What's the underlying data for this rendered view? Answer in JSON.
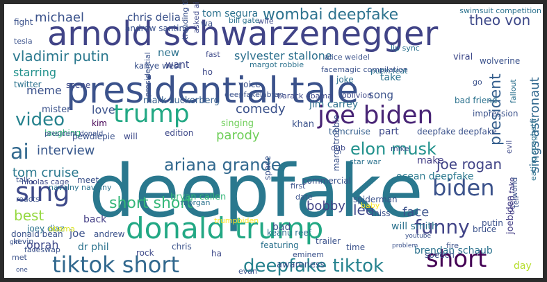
{
  "words": [
    {
      "text": "deepfake",
      "color": "#2a788e"
    },
    {
      "text": "presidential tale",
      "color": "#3b528b"
    },
    {
      "text": "arnold schwarzenegger",
      "color": "#414487"
    },
    {
      "text": "donald trump",
      "color": "#22a884"
    },
    {
      "text": "joe biden",
      "color": "#482475"
    },
    {
      "text": "trump",
      "color": "#22a884"
    },
    {
      "text": "tiktok short",
      "color": "#31688e"
    },
    {
      "text": "sing",
      "color": "#3e4989"
    },
    {
      "text": "short",
      "color": "#440154"
    },
    {
      "text": "biden",
      "color": "#3b528b"
    },
    {
      "text": "funny",
      "color": "#414487"
    },
    {
      "text": "deepfake tiktok",
      "color": "#26828e"
    },
    {
      "text": "video",
      "color": "#26828e"
    },
    {
      "text": "ai",
      "color": "#31688e"
    },
    {
      "text": "ariana grande",
      "color": "#31688e"
    },
    {
      "text": "elon musk",
      "color": "#21918c"
    },
    {
      "text": "wombai deepfake",
      "color": "#2c728e"
    },
    {
      "text": "short short",
      "color": "#35b779"
    },
    {
      "text": "vladimir putin",
      "color": "#2a788e"
    },
    {
      "text": "theo von",
      "color": "#3e4989"
    },
    {
      "text": "joe rogan",
      "color": "#414487"
    },
    {
      "text": "president",
      "color": "#355f8d"
    },
    {
      "text": "interview",
      "color": "#38588c"
    },
    {
      "text": "comedy",
      "color": "#3b528b"
    },
    {
      "text": "parody",
      "color": "#6ece58"
    },
    {
      "text": "sings astronaut",
      "color": "#31688e"
    },
    {
      "text": "tom cruise",
      "color": "#2a788e"
    },
    {
      "text": "sylvester stallone",
      "color": "#2d708e"
    },
    {
      "text": "michael",
      "color": "#3b528b"
    },
    {
      "text": "bobby",
      "color": "#414487"
    },
    {
      "text": "lee",
      "color": "#3e4989"
    },
    {
      "text": "face",
      "color": "#3b528b"
    },
    {
      "text": "oprah",
      "color": "#3e4989"
    },
    {
      "text": "best",
      "color": "#95d840"
    },
    {
      "text": "meme",
      "color": "#3b528b"
    },
    {
      "text": "love",
      "color": "#3b528b"
    },
    {
      "text": "starring",
      "color": "#21918c"
    },
    {
      "text": "laughing",
      "color": "#35b779"
    },
    {
      "text": "bryan callen",
      "color": "#35b779"
    },
    {
      "text": "dr phil",
      "color": "#2c728e"
    },
    {
      "text": "joe",
      "color": "#3b528b"
    },
    {
      "text": "back",
      "color": "#433e85"
    },
    {
      "text": "jim carrey",
      "color": "#2d708e"
    },
    {
      "text": "song",
      "color": "#3b528b"
    },
    {
      "text": "take",
      "color": "#2c728e"
    },
    {
      "text": "make",
      "color": "#433e85"
    },
    {
      "text": "day",
      "color": "#b5de2b"
    },
    {
      "text": "brendan schaub",
      "color": "#2c728e"
    },
    {
      "text": "will smith",
      "color": "#2c728e"
    },
    {
      "text": "new",
      "color": "#2c728e"
    },
    {
      "text": "mister",
      "color": "#3b528b"
    },
    {
      "text": "ocean deepfake",
      "color": "#2a788e"
    },
    {
      "text": "chris delia",
      "color": "#3b528b"
    },
    {
      "text": "tom segura",
      "color": "#2c728e"
    },
    {
      "text": "mark zuckerberg",
      "color": "#355f8d"
    },
    {
      "text": "president donald",
      "color": "#3b528b"
    },
    {
      "text": "tomcruise",
      "color": "#355f8d"
    },
    {
      "text": "part",
      "color": "#3e4989"
    },
    {
      "text": "deepfake deepfake",
      "color": "#3b528b"
    },
    {
      "text": "joebiden",
      "color": "#433e85"
    },
    {
      "text": "deep fake",
      "color": "#433e85"
    },
    {
      "text": "khan",
      "color": "#3b528b"
    },
    {
      "text": "singing",
      "color": "#6ece58"
    },
    {
      "text": "dub",
      "color": "#3e4989"
    },
    {
      "text": "bad",
      "color": "#3b528b"
    },
    {
      "text": "kanye west",
      "color": "#3b528b"
    },
    {
      "text": "want",
      "color": "#3e4989"
    },
    {
      "text": "andrew santino",
      "color": "#3b528b"
    },
    {
      "text": "margot robbie",
      "color": "#2c728e"
    },
    {
      "text": "alice weidel",
      "color": "#3b528b"
    },
    {
      "text": "putin feat",
      "color": "#2c728e"
    },
    {
      "text": "lip sync",
      "color": "#2c728e"
    },
    {
      "text": "fast",
      "color": "#3e4989"
    },
    {
      "text": "viral",
      "color": "#3e4989"
    },
    {
      "text": "wolverine",
      "color": "#3b528b"
    },
    {
      "text": "voice",
      "color": "#3b528b"
    },
    {
      "text": "joke",
      "color": "#2c728e"
    },
    {
      "text": "bad friend",
      "color": "#2c728e"
    },
    {
      "text": "impression",
      "color": "#3b528b"
    },
    {
      "text": "oblivion",
      "color": "#3e4989"
    },
    {
      "text": "twitter",
      "color": "#2c728e"
    },
    {
      "text": "scene",
      "color": "#3e4989"
    },
    {
      "text": "kim",
      "color": "#440154"
    },
    {
      "text": "pewdiepie",
      "color": "#3b528b"
    },
    {
      "text": "edition",
      "color": "#3e4989"
    },
    {
      "text": "will",
      "color": "#3e4989"
    },
    {
      "text": "fight",
      "color": "#3b528b"
    },
    {
      "text": "tesla",
      "color": "#3b528b"
    },
    {
      "text": "bill gate",
      "color": "#2c728e"
    },
    {
      "text": "wife",
      "color": "#3e4989"
    },
    {
      "text": "wa",
      "color": "#3b528b"
    },
    {
      "text": "ho",
      "color": "#3e4989"
    },
    {
      "text": "deepfakelabfan",
      "color": "#3b528b"
    },
    {
      "text": "barack obama",
      "color": "#3e4989"
    },
    {
      "text": "nicolas cage",
      "color": "#3e4989"
    },
    {
      "text": "navalny navalny",
      "color": "#2c728e"
    },
    {
      "text": "meet",
      "color": "#3b528b"
    },
    {
      "text": "talk",
      "color": "#3b528b"
    },
    {
      "text": "donald bean",
      "color": "#3b528b"
    },
    {
      "text": "joey diaz",
      "color": "#2c728e"
    },
    {
      "text": "kevin",
      "color": "#3b528b"
    },
    {
      "text": "faceswap",
      "color": "#3b528b"
    },
    {
      "text": "met",
      "color": "#3b528b"
    },
    {
      "text": "andrew",
      "color": "#3b528b"
    },
    {
      "text": "chris",
      "color": "#3b528b"
    },
    {
      "text": "rock",
      "color": "#3e4989"
    },
    {
      "text": "ha",
      "color": "#3e4989"
    },
    {
      "text": "evan",
      "color": "#3b528b"
    },
    {
      "text": "featuring",
      "color": "#2c728e"
    },
    {
      "text": "eminem",
      "color": "#3b528b"
    },
    {
      "text": "awareness",
      "color": "#3b528b"
    },
    {
      "text": "time",
      "color": "#3b528b"
    },
    {
      "text": "trailer",
      "color": "#3b528b"
    },
    {
      "text": "keanu reef",
      "color": "#2c728e"
    },
    {
      "text": "speech",
      "color": "#3b528b"
    },
    {
      "text": "fire",
      "color": "#3b528b"
    },
    {
      "text": "miss",
      "color": "#3b528b"
    },
    {
      "text": "spiderman",
      "color": "#3b528b"
    },
    {
      "text": "margotrobbie",
      "color": "#3b528b"
    },
    {
      "text": "commercial",
      "color": "#3b528b"
    },
    {
      "text": "space",
      "color": "#3b528b"
    },
    {
      "text": "first",
      "color": "#3b528b"
    },
    {
      "text": "date",
      "color": "#3b528b"
    },
    {
      "text": "putin",
      "color": "#3b528b"
    },
    {
      "text": "bruce",
      "color": "#3b528b"
    },
    {
      "text": "tell",
      "color": "#3b528b"
    },
    {
      "text": "star war",
      "color": "#2c728e"
    },
    {
      "text": "mike",
      "color": "#3b528b"
    },
    {
      "text": "world",
      "color": "#3b528b"
    },
    {
      "text": "eating spaghetti",
      "color": "#2c728e"
    },
    {
      "text": "swimsuit competition",
      "color": "#2c728e"
    },
    {
      "text": "trending tiktok",
      "color": "#3b528b"
    },
    {
      "text": "asked ai",
      "color": "#3e4989"
    },
    {
      "text": "evil",
      "color": "#3e4989"
    },
    {
      "text": "fallout",
      "color": "#2c728e"
    },
    {
      "text": "facemagic compilation",
      "color": "#3b528b"
    },
    {
      "text": "reacts",
      "color": "#3b528b"
    },
    {
      "text": "obama",
      "color": "#d8e219"
    },
    {
      "text": "morgan",
      "color": "#2c728e"
    },
    {
      "text": "trumpbiden",
      "color": "#fde725"
    },
    {
      "text": "baby",
      "color": "#fde725"
    },
    {
      "text": "go",
      "color": "#3b528b"
    },
    {
      "text": "girl",
      "color": "#3b528b"
    },
    {
      "text": "problem",
      "color": "#3b528b"
    },
    {
      "text": "youtube",
      "color": "#3b528b"
    },
    {
      "text": "one",
      "color": "#3b528b"
    },
    {
      "text": "presidential",
      "color": "#3b528b"
    },
    {
      "text": "real",
      "color": "#2c728e"
    }
  ]
}
